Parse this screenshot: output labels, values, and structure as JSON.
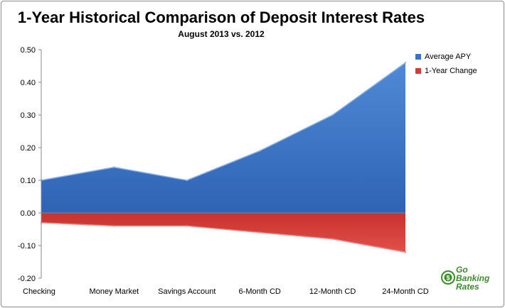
{
  "chart_data": {
    "type": "area",
    "title": "1-Year Historical Comparison of Deposit Interest Rates",
    "subtitle": "August 2013 vs. 2012",
    "categories": [
      "Checking",
      "Money Market",
      "Savings Account",
      "6-Month CD",
      "12-Month CD",
      "24-Month CD"
    ],
    "series": [
      {
        "name": "Average APY",
        "values": [
          0.1,
          0.14,
          0.1,
          0.19,
          0.3,
          0.46
        ],
        "color": "#3a73c6"
      },
      {
        "name": "1-Year Change",
        "values": [
          -0.03,
          -0.04,
          -0.04,
          -0.06,
          -0.08,
          -0.12
        ],
        "color": "#d23b36"
      }
    ],
    "ylim": [
      -0.2,
      0.5
    ],
    "yticks": [
      "0.50",
      "0.40",
      "0.30",
      "0.20",
      "0.10",
      "0.00",
      "-0.10",
      "-0.20"
    ],
    "xlabel": "",
    "ylabel": "",
    "grid": false,
    "legend_position": "right"
  },
  "logo": {
    "line1": "Go",
    "line2": "Banking",
    "line3": "Rates",
    "color": "#3a8c2a",
    "icon": "dollar-coin-icon"
  }
}
